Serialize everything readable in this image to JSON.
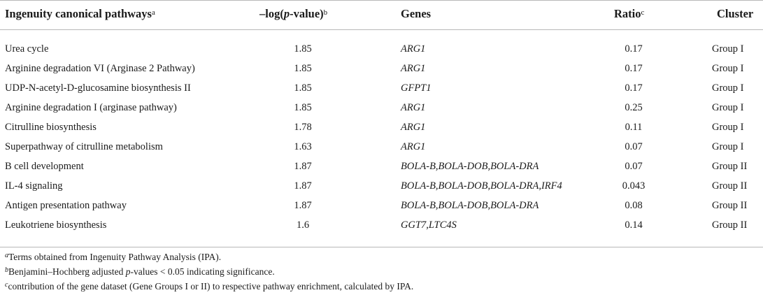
{
  "table": {
    "headers": {
      "pathway": "Ingenuity canonical pathways",
      "pathway_sup": "a",
      "logp_prefix": "–log(",
      "logp_italic": "p",
      "logp_suffix": "-value)",
      "logp_sup": "b",
      "genes": "Genes",
      "ratio": "Ratio",
      "ratio_sup": "c",
      "cluster": "Cluster"
    },
    "rows": [
      {
        "pathway": "Urea cycle",
        "logp": "1.85",
        "genes": "ARG1",
        "ratio": "0.17",
        "cluster": "Group I"
      },
      {
        "pathway": "Arginine degradation VI (Arginase 2 Pathway)",
        "logp": "1.85",
        "genes": "ARG1",
        "ratio": "0.17",
        "cluster": "Group I"
      },
      {
        "pathway": "UDP-N-acetyl-D-glucosamine biosynthesis II",
        "logp": "1.85",
        "genes": "GFPT1",
        "ratio": "0.17",
        "cluster": "Group I"
      },
      {
        "pathway": "Arginine degradation I (arginase pathway)",
        "logp": "1.85",
        "genes": "ARG1",
        "ratio": "0.25",
        "cluster": "Group I"
      },
      {
        "pathway": "Citrulline biosynthesis",
        "logp": "1.78",
        "genes": "ARG1",
        "ratio": "0.11",
        "cluster": "Group I"
      },
      {
        "pathway": "Superpathway of citrulline metabolism",
        "logp": "1.63",
        "genes": "ARG1",
        "ratio": "0.07",
        "cluster": "Group I"
      },
      {
        "pathway": "B cell development",
        "logp": "1.87",
        "genes": "BOLA-B,BOLA-DOB,BOLA-DRA",
        "ratio": "0.07",
        "cluster": "Group II"
      },
      {
        "pathway": "IL-4 signaling",
        "logp": "1.87",
        "genes": "BOLA-B,BOLA-DOB,BOLA-DRA,IRF4",
        "ratio": "0.043",
        "cluster": "Group II"
      },
      {
        "pathway": "Antigen presentation pathway",
        "logp": "1.87",
        "genes": "BOLA-B,BOLA-DOB,BOLA-DRA",
        "ratio": "0.08",
        "cluster": "Group II"
      },
      {
        "pathway": "Leukotriene biosynthesis",
        "logp": "1.6",
        "genes": "GGT7,LTC4S",
        "ratio": "0.14",
        "cluster": "Group II"
      }
    ]
  },
  "footnotes": {
    "a": {
      "marker": "a",
      "text": "Terms obtained from Ingenuity Pathway Analysis (IPA)."
    },
    "b": {
      "marker": "b",
      "pre": "Benjamini–Hochberg adjusted ",
      "italic": "p",
      "post": "-values < 0.05 indicating significance."
    },
    "c": {
      "marker": "c",
      "text": "contribution of the gene dataset (Gene Groups I or II) to respective pathway enrichment, calculated by IPA."
    }
  }
}
